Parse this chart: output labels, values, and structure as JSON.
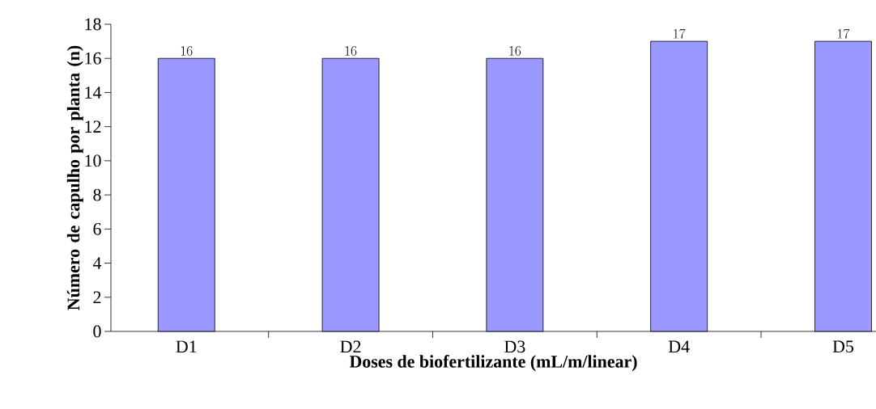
{
  "chart_data": {
    "type": "bar",
    "xlabel": "Doses de biofertilizante (mL/m/linear)",
    "ylabel": "Número de capulho por planta (n)",
    "categories": [
      "D1",
      "D2",
      "D3",
      "D4",
      "D5"
    ],
    "values": [
      16,
      16,
      16,
      17,
      17
    ],
    "color": "#9999ff",
    "data_labels": true,
    "ylim": [
      0,
      18
    ],
    "yticks": [
      0,
      2,
      4,
      6,
      8,
      10,
      12,
      14,
      16,
      18
    ],
    "grid": false
  }
}
